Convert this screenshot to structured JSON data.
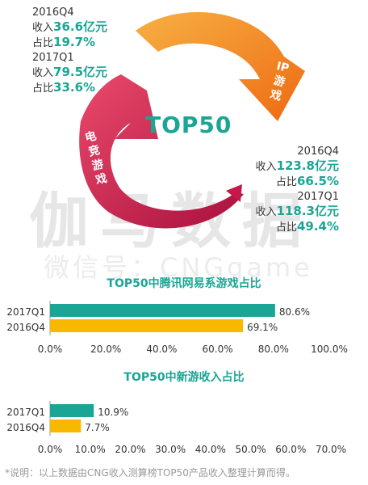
{
  "watermark": {
    "main": "伽马数据",
    "sub": "微信号：CNGgame"
  },
  "top_left": {
    "q4_label": "2016Q4",
    "q4_revenue_prefix": "收入",
    "q4_revenue_value": "36.6亿元",
    "q4_share_prefix": "占比",
    "q4_share_value": "19.7%",
    "q1_label": "2017Q1",
    "q1_revenue_prefix": "收入",
    "q1_revenue_value": "79.5亿元",
    "q1_share_prefix": "占比",
    "q1_share_value": "33.6%"
  },
  "center_title": "TOP50",
  "arrow_labels": {
    "ip_1": "IP",
    "ip_2": "游",
    "ip_3": "戏",
    "es_1": "电",
    "es_2": "竞",
    "es_3": "游",
    "es_4": "戏"
  },
  "right_block": {
    "q4_label": "2016Q4",
    "q4_revenue_prefix": "收入",
    "q4_revenue_value": "123.8亿元",
    "q4_share_prefix": "占比",
    "q4_share_value": "66.5%",
    "q1_label": "2017Q1",
    "q1_revenue_prefix": "收入",
    "q1_revenue_value": "118.3亿元",
    "q1_share_prefix": "占比",
    "q1_share_value": "49.4%"
  },
  "colors": {
    "teal": "#1aa594",
    "yellow": "#f9b800",
    "orange": "#f07b1c",
    "crimson": "#c8174b"
  },
  "chart_data": [
    {
      "type": "bar",
      "title": "TOP50中腾讯网易系游戏占比",
      "categories": [
        "2017Q1",
        "2016Q4"
      ],
      "values": [
        80.6,
        69.1
      ],
      "value_labels": [
        "80.6%",
        "69.1%"
      ],
      "xlim": [
        0,
        100
      ],
      "ticks": [
        "0.0%",
        "20.0%",
        "40.0%",
        "60.0%",
        "80.0%",
        "100.0%"
      ],
      "grid": false,
      "orientation": "horizontal"
    },
    {
      "type": "bar",
      "title": "TOP50中新游收入占比",
      "categories": [
        "2017Q1",
        "2016Q4"
      ],
      "values": [
        10.9,
        7.7
      ],
      "value_labels": [
        "10.9%",
        "7.7%"
      ],
      "xlim": [
        0,
        70
      ],
      "ticks": [
        "0.0%",
        "10.0%",
        "20.0%",
        "30.0%",
        "40.0%",
        "50.0%",
        "60.0%",
        "70.0%"
      ],
      "grid": false,
      "orientation": "horizontal"
    }
  ],
  "footnote": "*说明：以上数据由CNG收入测算榜TOP50产品收入整理计算而得。"
}
